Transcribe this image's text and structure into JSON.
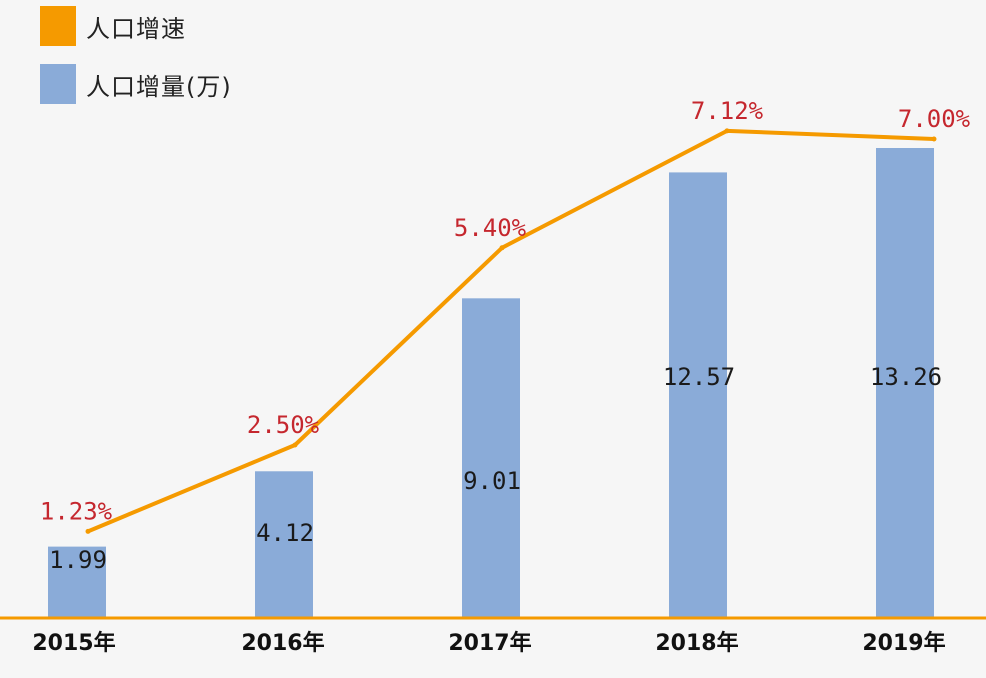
{
  "chart_data": {
    "type": "bar",
    "categories": [
      "2015年",
      "2016年",
      "2017年",
      "2018年",
      "2019年"
    ],
    "series": [
      {
        "name": "人口增量(万)",
        "type": "bar",
        "values": [
          1.99,
          4.12,
          9.01,
          12.57,
          13.26
        ],
        "labels": [
          "1.99",
          "4.12",
          "9.01",
          "12.57",
          "13.26"
        ]
      },
      {
        "name": "人口增速",
        "type": "line",
        "values": [
          1.23,
          2.5,
          5.4,
          7.12,
          7.0
        ],
        "labels": [
          "1.23%",
          "2.50%",
          "5.40%",
          "7.12%",
          "7.00%"
        ]
      }
    ],
    "legend": [
      {
        "label": "人口增速",
        "color": "#f59a00"
      },
      {
        "label": "人口增量(万)",
        "color": "#8aabd8"
      }
    ],
    "legend_position": "top-left",
    "grid": false,
    "colors": {
      "bar": "#8aabd8",
      "line": "#f59a00",
      "rate_label": "#c5272e",
      "baseline": "#f59a00"
    }
  }
}
